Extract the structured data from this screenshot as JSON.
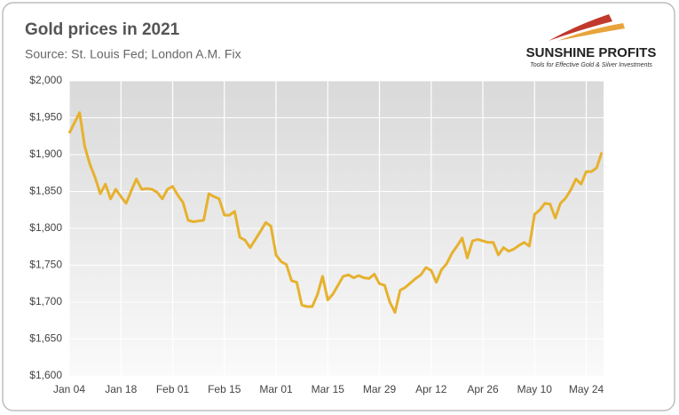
{
  "chart_data": {
    "type": "line",
    "title": "Gold prices in 2021",
    "subtitle": "Source: St. Louis Fed; London A.M. Fix",
    "logo": {
      "name": "SUNSHINE PROFITS",
      "tagline": "Tools for Effective Gold & Silver Investments"
    },
    "categories": [
      "Jan 04",
      null,
      null,
      null,
      null,
      null,
      null,
      null,
      null,
      null,
      "Jan 18",
      null,
      null,
      null,
      null,
      null,
      null,
      null,
      null,
      null,
      "Feb 01",
      null,
      null,
      null,
      null,
      null,
      null,
      null,
      null,
      null,
      "Feb 15",
      null,
      null,
      null,
      null,
      null,
      null,
      null,
      null,
      null,
      "Mar 01",
      null,
      null,
      null,
      null,
      null,
      null,
      null,
      null,
      null,
      "Mar 15",
      null,
      null,
      null,
      null,
      null,
      null,
      null,
      null,
      null,
      "Mar 29",
      null,
      null,
      null,
      null,
      null,
      null,
      null,
      null,
      null,
      "Apr 12",
      null,
      null,
      null,
      null,
      null,
      null,
      null,
      null,
      null,
      "Apr 26",
      null,
      null,
      null,
      null,
      null,
      null,
      null,
      null,
      null,
      "May 10",
      null,
      null,
      null,
      null,
      null,
      null,
      null,
      null,
      null,
      "May 24",
      null,
      null,
      null
    ],
    "series": [
      {
        "name": "Gold price",
        "color": "#e6b12e",
        "values": [
          1929,
          1943,
          1957,
          1911,
          1887,
          1869,
          1847,
          1860,
          1840,
          1853,
          1843,
          1834,
          1851,
          1867,
          1853,
          1854,
          1853,
          1849,
          1840,
          1853,
          1857,
          1845,
          1835,
          1811,
          1809,
          1810,
          1811,
          1847,
          1843,
          1840,
          1818,
          1818,
          1823,
          1788,
          1784,
          1774,
          1785,
          1796,
          1808,
          1803,
          1764,
          1755,
          1751,
          1729,
          1727,
          1696,
          1694,
          1694,
          1710,
          1735,
          1703,
          1711,
          1723,
          1735,
          1737,
          1733,
          1736,
          1733,
          1732,
          1738,
          1725,
          1723,
          1700,
          1686,
          1716,
          1720,
          1726,
          1732,
          1737,
          1747,
          1743,
          1727,
          1744,
          1752,
          1766,
          1776,
          1787,
          1760,
          1783,
          1785,
          1783,
          1781,
          1781,
          1764,
          1774,
          1769,
          1772,
          1777,
          1781,
          1776,
          1819,
          1825,
          1834,
          1833,
          1814,
          1834,
          1841,
          1852,
          1867,
          1860,
          1877,
          1877,
          1882,
          1903
        ]
      }
    ],
    "ylim": [
      1600,
      2000
    ],
    "yticks": [
      {
        "value": 1600,
        "label": "$1,600"
      },
      {
        "value": 1650,
        "label": "$1,650"
      },
      {
        "value": 1700,
        "label": "$1,700"
      },
      {
        "value": 1750,
        "label": "$1,750"
      },
      {
        "value": 1800,
        "label": "$1,800"
      },
      {
        "value": 1850,
        "label": "$1,850"
      },
      {
        "value": 1900,
        "label": "$1,900"
      },
      {
        "value": 1950,
        "label": "$1,950"
      },
      {
        "value": 2000,
        "label": "$2,000"
      }
    ],
    "grid": true
  }
}
